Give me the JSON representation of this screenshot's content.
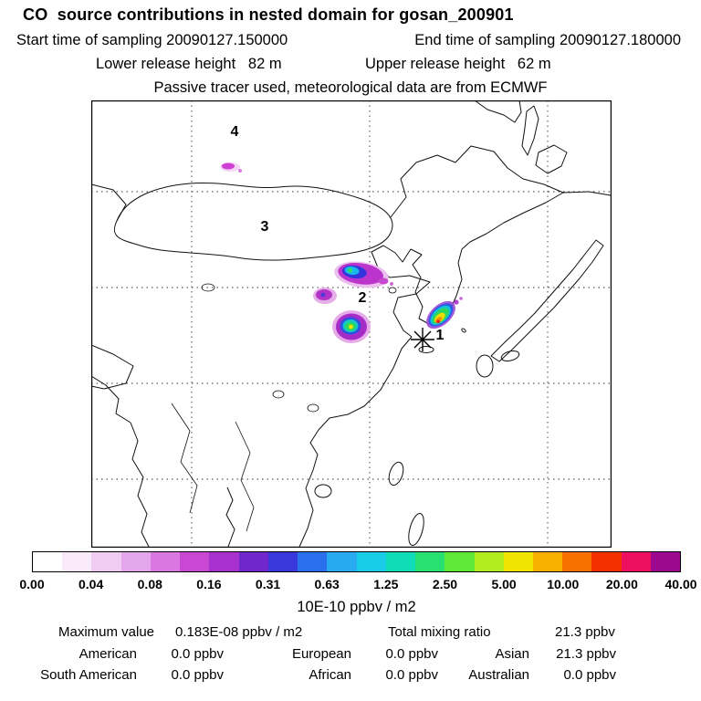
{
  "header": {
    "title": "CO  source contributions in nested domain for gosan_200901",
    "start_time": "Start time of sampling 20090127.150000",
    "end_time": "End time of sampling 20090127.180000",
    "lower_release": "Lower release height   82 m",
    "upper_release": "Upper release height   62 m",
    "tracer_note": "Passive tracer used, meteorological data are from ECMWF"
  },
  "map": {
    "nest_labels": [
      "1",
      "2",
      "3",
      "4"
    ]
  },
  "colorbar": {
    "colors": [
      "#ffffff",
      "#f8eaf9",
      "#f0ccf2",
      "#e4a6ea",
      "#d878e0",
      "#c848d4",
      "#a830cc",
      "#7028cc",
      "#3838dc",
      "#2870ec",
      "#28aaf0",
      "#18cce8",
      "#10dcb8",
      "#28e070",
      "#60e838",
      "#b0ec20",
      "#f0e400",
      "#f8b000",
      "#f87000",
      "#f43000",
      "#ee1060",
      "#9c0890"
    ],
    "tick_labels": [
      "0.00",
      "0.04",
      "0.08",
      "0.16",
      "0.31",
      "0.63",
      "1.25",
      "2.50",
      "5.00",
      "10.00",
      "20.00",
      "40.00"
    ],
    "units": "10E-10 ppbv / m2"
  },
  "stats": {
    "max_label": "Maximum value",
    "max_value": "0.183E-08 ppbv / m2",
    "total_label": "Total mixing ratio",
    "total_value": "21.3 ppbv",
    "regions": [
      {
        "label": "American",
        "value": "0.0 ppbv"
      },
      {
        "label": "European",
        "value": "0.0 ppbv"
      },
      {
        "label": "Asian",
        "value": "21.3 ppbv"
      },
      {
        "label": "South American",
        "value": "0.0 ppbv"
      },
      {
        "label": "African",
        "value": "0.0 ppbv"
      },
      {
        "label": "Australian",
        "value": "0.0 ppbv"
      }
    ]
  },
  "chart_data": {
    "type": "heatmap",
    "title": "CO  source contributions in nested domain for gosan_200901",
    "region": "East Asia nested model domain with receptor star near Gosan (Jeju)",
    "sampling_start": "20090127.150000",
    "sampling_end": "20090127.180000",
    "lower_release_height_m": 82,
    "upper_release_height_m": 62,
    "tracer": "Passive tracer, meteorological data from ECMWF",
    "colorbar_levels": [
      0.0,
      0.04,
      0.08,
      0.16,
      0.31,
      0.63,
      1.25,
      2.5,
      5.0,
      10.0,
      20.0,
      40.0
    ],
    "colorbar_units": "10E-10 ppbv / m2",
    "maximum_value": "0.183E-08 ppbv / m2",
    "total_mixing_ratio_ppbv": 21.3,
    "contributions_ppbv": {
      "American": 0.0,
      "European": 0.0,
      "Asian": 21.3,
      "South American": 0.0,
      "African": 0.0,
      "Australian": 0.0
    },
    "nest_markers": [
      "4 (far north, small plume)",
      "3 (Mongolia/north China)",
      "2 (Bohai region)",
      "1 (receptor, near Korea/Jeju)"
    ],
    "plumes_estimated": [
      {
        "location": "far-north small plume",
        "level_range": "0.04-0.16"
      },
      {
        "location": "Beijing/Hebei elongated plume",
        "level_range": "0.3-1.3"
      },
      {
        "location": "Shanxi small plume",
        "level_range": "0.1-0.3"
      },
      {
        "location": "Shandong/Bohai plume",
        "level_range": "0.6-2.5"
      },
      {
        "location": "Yellow Sea / Korea plume at receptor",
        "level_range": "2.5-10"
      }
    ]
  }
}
